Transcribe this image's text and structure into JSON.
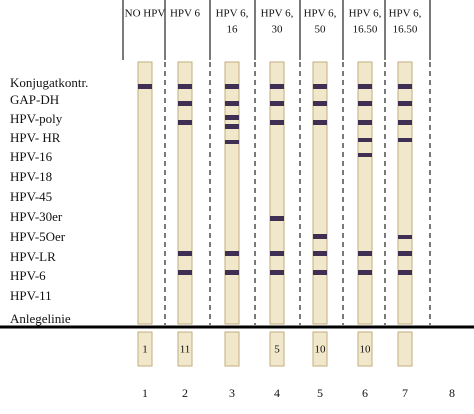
{
  "lanes": [
    {
      "header": [
        "NO HPV"
      ],
      "tag": "1",
      "number": "1"
    },
    {
      "header": [
        "HPV 6"
      ],
      "tag": "11",
      "number": "2"
    },
    {
      "header": [
        "HPV 6,",
        "16"
      ],
      "number": "3"
    },
    {
      "header": [
        "HPV 6,",
        "30"
      ],
      "tag": "5",
      "number": "4"
    },
    {
      "header": [
        "HPV 6,",
        "50"
      ],
      "tag": "10",
      "number": "5"
    },
    {
      "header": [
        "HPV 6,",
        "16.50"
      ],
      "tag": "10",
      "number": "6"
    },
    {
      "header": [
        "HPV 6,",
        "16.50"
      ],
      "number": "7"
    },
    {
      "number": "8"
    }
  ],
  "rows": [
    "Konjugatkontr.",
    "GAP-DH",
    "HPV-poly",
    "HPV- HR",
    "HPV-16",
    "HPV-18",
    "HPV-45",
    "HPV-30er",
    "HPV-5Oer",
    "HPV-LR",
    "HPV-6",
    "HPV-11",
    "Anlegelinie"
  ]
}
